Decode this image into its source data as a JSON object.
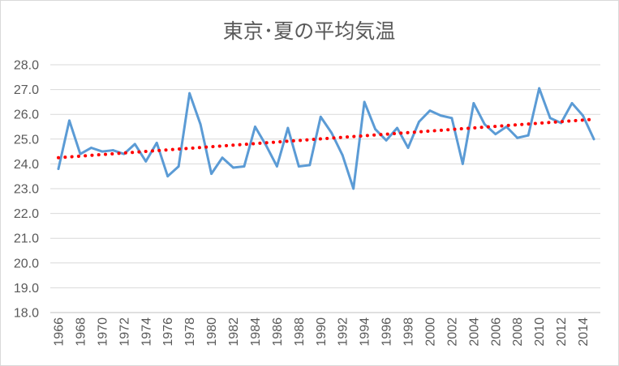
{
  "chart_data": {
    "type": "line",
    "title": "東京･夏の平均気温",
    "x": [
      1966,
      1967,
      1968,
      1969,
      1970,
      1971,
      1972,
      1973,
      1974,
      1975,
      1976,
      1977,
      1978,
      1979,
      1980,
      1981,
      1982,
      1983,
      1984,
      1985,
      1986,
      1987,
      1988,
      1989,
      1990,
      1991,
      1992,
      1993,
      1994,
      1995,
      1996,
      1997,
      1998,
      1999,
      2000,
      2001,
      2002,
      2003,
      2004,
      2005,
      2006,
      2007,
      2008,
      2009,
      2010,
      2011,
      2012,
      2013,
      2014,
      2015
    ],
    "values": [
      23.8,
      25.75,
      24.4,
      24.65,
      24.5,
      24.55,
      24.4,
      24.8,
      24.1,
      24.85,
      23.5,
      23.9,
      26.85,
      25.6,
      23.6,
      24.25,
      23.85,
      23.9,
      25.5,
      24.75,
      23.9,
      25.45,
      23.9,
      23.95,
      25.9,
      25.25,
      24.35,
      23.0,
      26.5,
      25.4,
      24.95,
      25.45,
      24.65,
      25.7,
      26.15,
      25.95,
      25.85,
      24.0,
      26.45,
      25.6,
      25.2,
      25.5,
      25.05,
      25.15,
      27.05,
      25.85,
      25.65,
      26.45,
      25.95,
      25.0
    ],
    "ylim": [
      18,
      28
    ],
    "y_tick_labels": [
      "28.0",
      "27.0",
      "26.0",
      "25.0",
      "24.0",
      "23.0",
      "22.0",
      "21.0",
      "20.0",
      "19.0",
      "18.0"
    ],
    "x_tick_labels": [
      "1966",
      "1968",
      "1970",
      "1972",
      "1974",
      "1976",
      "1978",
      "1980",
      "1982",
      "1984",
      "1986",
      "1988",
      "1990",
      "1992",
      "1994",
      "1996",
      "1998",
      "2000",
      "2002",
      "2004",
      "2006",
      "2008",
      "2010",
      "2012",
      "2014"
    ],
    "xlabel": "",
    "ylabel": "",
    "grid": true,
    "legend": "none",
    "trendline": {
      "type": "linear",
      "start_value": 24.25,
      "end_value": 25.8
    },
    "colors": {
      "series": "#5b9bd5",
      "trendline": "#ff0000",
      "grid": "#d9d9d9",
      "axis": "#bfbfbf",
      "text": "#595959",
      "border": "#d9d9d9"
    }
  }
}
